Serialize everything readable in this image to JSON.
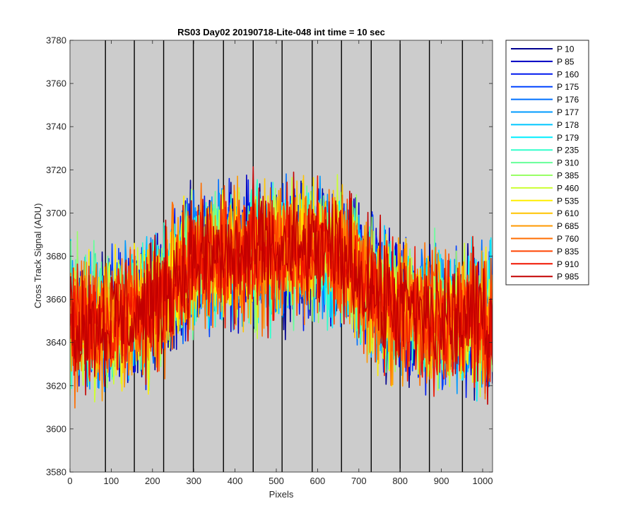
{
  "chart_data": {
    "type": "line",
    "title": "RS03 Day02 20190718-Lite-048 int time = 10 sec",
    "xlabel": "Pixels",
    "ylabel": "Cross Track Signal (ADU)",
    "xlim": [
      0,
      1024
    ],
    "ylim": [
      3580,
      3780
    ],
    "x_ticks": [
      0,
      100,
      200,
      300,
      400,
      500,
      600,
      700,
      800,
      900,
      1000
    ],
    "y_ticks": [
      3580,
      3600,
      3620,
      3640,
      3660,
      3680,
      3700,
      3720,
      3740,
      3760,
      3780
    ],
    "plot_background": "#cccccc",
    "vertical_divider_lines_x": [
      86,
      156,
      227,
      299,
      372,
      444,
      514,
      587,
      658,
      730,
      800,
      871,
      951
    ],
    "legend_position": "outside-right",
    "noise_amplitude_adu": 22,
    "profile_anchors": [
      {
        "x": 0,
        "y": 3650
      },
      {
        "x": 100,
        "y": 3650
      },
      {
        "x": 200,
        "y": 3655
      },
      {
        "x": 250,
        "y": 3670
      },
      {
        "x": 300,
        "y": 3678
      },
      {
        "x": 400,
        "y": 3680
      },
      {
        "x": 500,
        "y": 3682
      },
      {
        "x": 600,
        "y": 3682
      },
      {
        "x": 680,
        "y": 3678
      },
      {
        "x": 720,
        "y": 3668
      },
      {
        "x": 760,
        "y": 3658
      },
      {
        "x": 850,
        "y": 3652
      },
      {
        "x": 1024,
        "y": 3650
      }
    ],
    "series": [
      {
        "name": "P 10",
        "color": "#00008f"
      },
      {
        "name": "P 85",
        "color": "#0000c2"
      },
      {
        "name": "P 160",
        "color": "#0019ef"
      },
      {
        "name": "P 175",
        "color": "#0043ff"
      },
      {
        "name": "P 176",
        "color": "#0070ff"
      },
      {
        "name": "P 177",
        "color": "#009bff"
      },
      {
        "name": "P 178",
        "color": "#00c6ff"
      },
      {
        "name": "P 179",
        "color": "#00eeff"
      },
      {
        "name": "P 235",
        "color": "#33ffcc"
      },
      {
        "name": "P 310",
        "color": "#66ff99"
      },
      {
        "name": "P 385",
        "color": "#99ff66"
      },
      {
        "name": "P 460",
        "color": "#ccff33"
      },
      {
        "name": "P 535",
        "color": "#ffee00"
      },
      {
        "name": "P 610",
        "color": "#ffc400"
      },
      {
        "name": "P 685",
        "color": "#ff9900"
      },
      {
        "name": "P 760",
        "color": "#ff6e00"
      },
      {
        "name": "P 835",
        "color": "#ff4300"
      },
      {
        "name": "P 910",
        "color": "#f01500"
      },
      {
        "name": "P 985",
        "color": "#c40000"
      }
    ]
  }
}
